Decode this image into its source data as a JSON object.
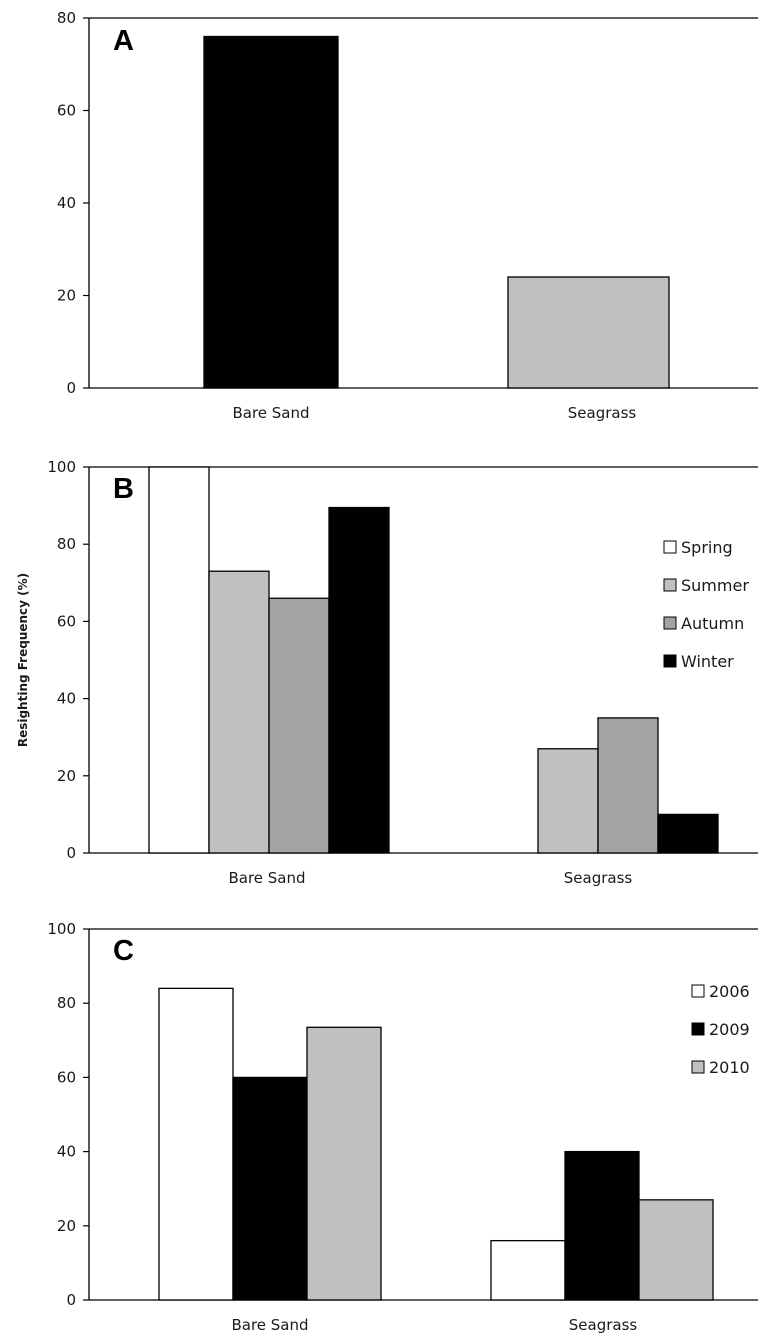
{
  "ylabel": "Resighting Frequency (%)",
  "chart_data": [
    {
      "type": "bar",
      "panel_label": "A",
      "categories": [
        "Bare Sand",
        "Seagrass"
      ],
      "ylim": [
        0,
        80
      ],
      "yticks": [
        0,
        20,
        40,
        60,
        80
      ],
      "series": [
        {
          "values": [
            76,
            24
          ],
          "colors": [
            "#000000",
            "#c0c0c0"
          ]
        }
      ],
      "legend": []
    },
    {
      "type": "bar",
      "panel_label": "B",
      "categories": [
        "Bare Sand",
        "Seagrass"
      ],
      "ylim": [
        0,
        100
      ],
      "yticks": [
        0,
        20,
        40,
        60,
        80,
        100
      ],
      "series": [
        {
          "name": "Spring",
          "values": [
            100,
            0
          ],
          "color": "#ffffff"
        },
        {
          "name": "Summer",
          "values": [
            73,
            27
          ],
          "color": "#c0c0c0"
        },
        {
          "name": "Autumn",
          "values": [
            66,
            35
          ],
          "color": "#a3a3a3"
        },
        {
          "name": "Winter",
          "values": [
            89.5,
            10
          ],
          "color": "#000000"
        }
      ],
      "legend": [
        "Spring",
        "Summer",
        "Autumn",
        "Winter"
      ]
    },
    {
      "type": "bar",
      "panel_label": "C",
      "categories": [
        "Bare Sand",
        "Seagrass"
      ],
      "ylim": [
        0,
        100
      ],
      "yticks": [
        0,
        20,
        40,
        60,
        80,
        100
      ],
      "series": [
        {
          "name": "2006",
          "values": [
            84,
            16
          ],
          "color": "#ffffff"
        },
        {
          "name": "2009",
          "values": [
            60,
            40
          ],
          "color": "#000000"
        },
        {
          "name": "2010",
          "values": [
            73.5,
            27
          ],
          "color": "#c0c0c0"
        }
      ],
      "legend": [
        "2006",
        "2009",
        "2010"
      ]
    }
  ]
}
